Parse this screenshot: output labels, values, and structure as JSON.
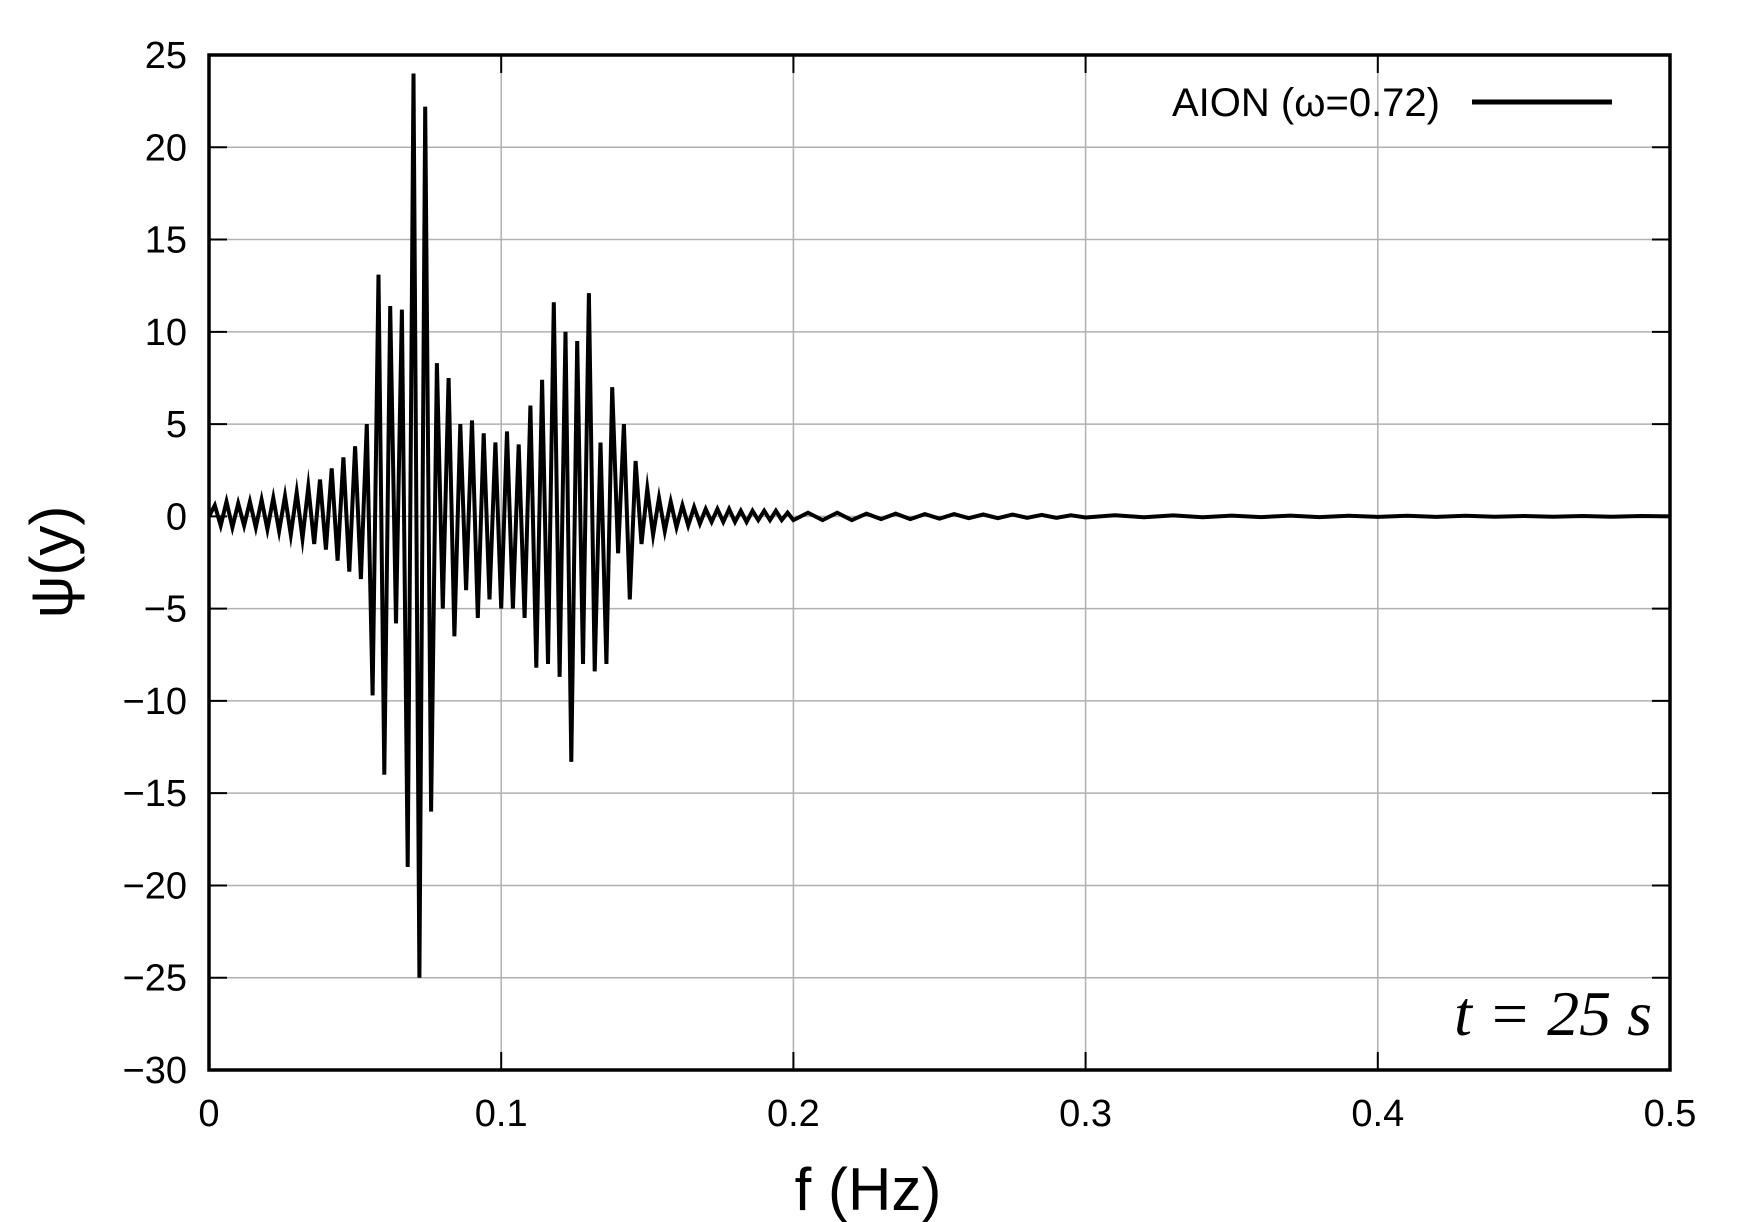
{
  "chart_data": {
    "type": "line",
    "xlabel": "f (Hz)",
    "ylabel": "ψ(y)",
    "xlim": [
      0,
      0.5
    ],
    "ylim": [
      -30,
      25
    ],
    "xticks": [
      "0",
      "0.1",
      "0.2",
      "0.3",
      "0.4",
      "0.5"
    ],
    "yticks": [
      "25",
      "20",
      "15",
      "10",
      "5",
      "0",
      "−5",
      "−10",
      "−15",
      "−20",
      "−25",
      "−30"
    ],
    "grid": true,
    "legend_position": "top-right",
    "annotation": "t = 25 s",
    "series": [
      {
        "name": "AION (ω=0.72)",
        "color": "#000000",
        "x": [
          0.0,
          0.002,
          0.004,
          0.006,
          0.008,
          0.01,
          0.012,
          0.014,
          0.016,
          0.018,
          0.02,
          0.022,
          0.024,
          0.026,
          0.028,
          0.03,
          0.032,
          0.034,
          0.036,
          0.038,
          0.04,
          0.042,
          0.044,
          0.046,
          0.048,
          0.05,
          0.052,
          0.054,
          0.056,
          0.058,
          0.06,
          0.062,
          0.064,
          0.066,
          0.068,
          0.07,
          0.072,
          0.074,
          0.076,
          0.078,
          0.08,
          0.082,
          0.084,
          0.086,
          0.088,
          0.09,
          0.092,
          0.094,
          0.096,
          0.098,
          0.1,
          0.102,
          0.104,
          0.106,
          0.108,
          0.11,
          0.112,
          0.114,
          0.116,
          0.118,
          0.12,
          0.122,
          0.124,
          0.126,
          0.128,
          0.13,
          0.132,
          0.134,
          0.136,
          0.138,
          0.14,
          0.142,
          0.144,
          0.146,
          0.148,
          0.15,
          0.152,
          0.154,
          0.156,
          0.158,
          0.16,
          0.162,
          0.164,
          0.166,
          0.168,
          0.17,
          0.172,
          0.174,
          0.176,
          0.178,
          0.18,
          0.182,
          0.184,
          0.186,
          0.188,
          0.19,
          0.192,
          0.194,
          0.196,
          0.198,
          0.2,
          0.205,
          0.21,
          0.215,
          0.22,
          0.225,
          0.23,
          0.235,
          0.24,
          0.245,
          0.25,
          0.255,
          0.26,
          0.265,
          0.27,
          0.275,
          0.28,
          0.285,
          0.29,
          0.295,
          0.3,
          0.31,
          0.32,
          0.33,
          0.34,
          0.35,
          0.36,
          0.37,
          0.38,
          0.39,
          0.4,
          0.41,
          0.42,
          0.43,
          0.44,
          0.45,
          0.46,
          0.47,
          0.48,
          0.49,
          0.5
        ],
        "y": [
          0.0,
          0.6,
          -0.5,
          0.8,
          -0.6,
          0.7,
          -0.5,
          0.8,
          -0.6,
          0.9,
          -0.7,
          1.0,
          -0.8,
          1.1,
          -1.0,
          1.3,
          -1.2,
          1.6,
          -1.5,
          2.0,
          -1.8,
          2.6,
          -2.4,
          3.2,
          -3.0,
          3.8,
          -3.4,
          5.0,
          -9.7,
          13.1,
          -14.0,
          11.4,
          -5.8,
          11.2,
          -19.0,
          24.0,
          -25.0,
          22.2,
          -16.0,
          8.3,
          -5.0,
          7.5,
          -6.5,
          5.0,
          -4.0,
          5.2,
          -5.5,
          4.5,
          -4.5,
          4.0,
          -5.0,
          4.6,
          -5.0,
          3.9,
          -5.5,
          6.0,
          -8.2,
          7.4,
          -8.0,
          11.6,
          -8.7,
          10.0,
          -13.3,
          9.5,
          -8.0,
          12.1,
          -8.4,
          4.0,
          -8.0,
          7.0,
          -2.0,
          5.0,
          -4.5,
          3.0,
          -1.5,
          1.5,
          -1.0,
          1.0,
          -0.8,
          0.8,
          -0.6,
          0.6,
          -0.5,
          0.5,
          -0.4,
          0.4,
          -0.3,
          0.4,
          -0.3,
          0.4,
          -0.3,
          0.3,
          -0.3,
          0.3,
          -0.2,
          0.3,
          -0.2,
          0.3,
          -0.2,
          0.2,
          -0.2,
          0.2,
          -0.2,
          0.2,
          -0.2,
          0.15,
          -0.15,
          0.15,
          -0.15,
          0.12,
          -0.12,
          0.12,
          -0.1,
          0.1,
          -0.1,
          0.1,
          -0.08,
          0.08,
          -0.08,
          0.06,
          -0.06,
          0.06,
          -0.05,
          0.05,
          -0.05,
          0.04,
          -0.04,
          0.04,
          -0.04,
          0.03,
          -0.03,
          0.03,
          -0.03,
          0.03,
          -0.02,
          0.02,
          -0.02,
          0.02,
          -0.02,
          0.02,
          0.0
        ]
      }
    ]
  }
}
